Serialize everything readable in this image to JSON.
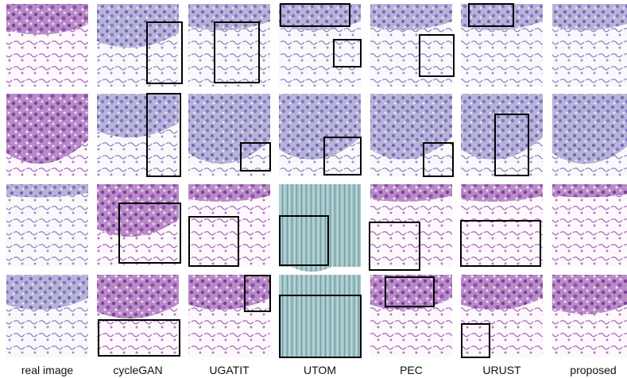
{
  "figure": {
    "column_labels": [
      "real image",
      "cycleGAN",
      "UGATIT",
      "UTOM",
      "PEC",
      "URUST",
      "proposed"
    ]
  }
}
